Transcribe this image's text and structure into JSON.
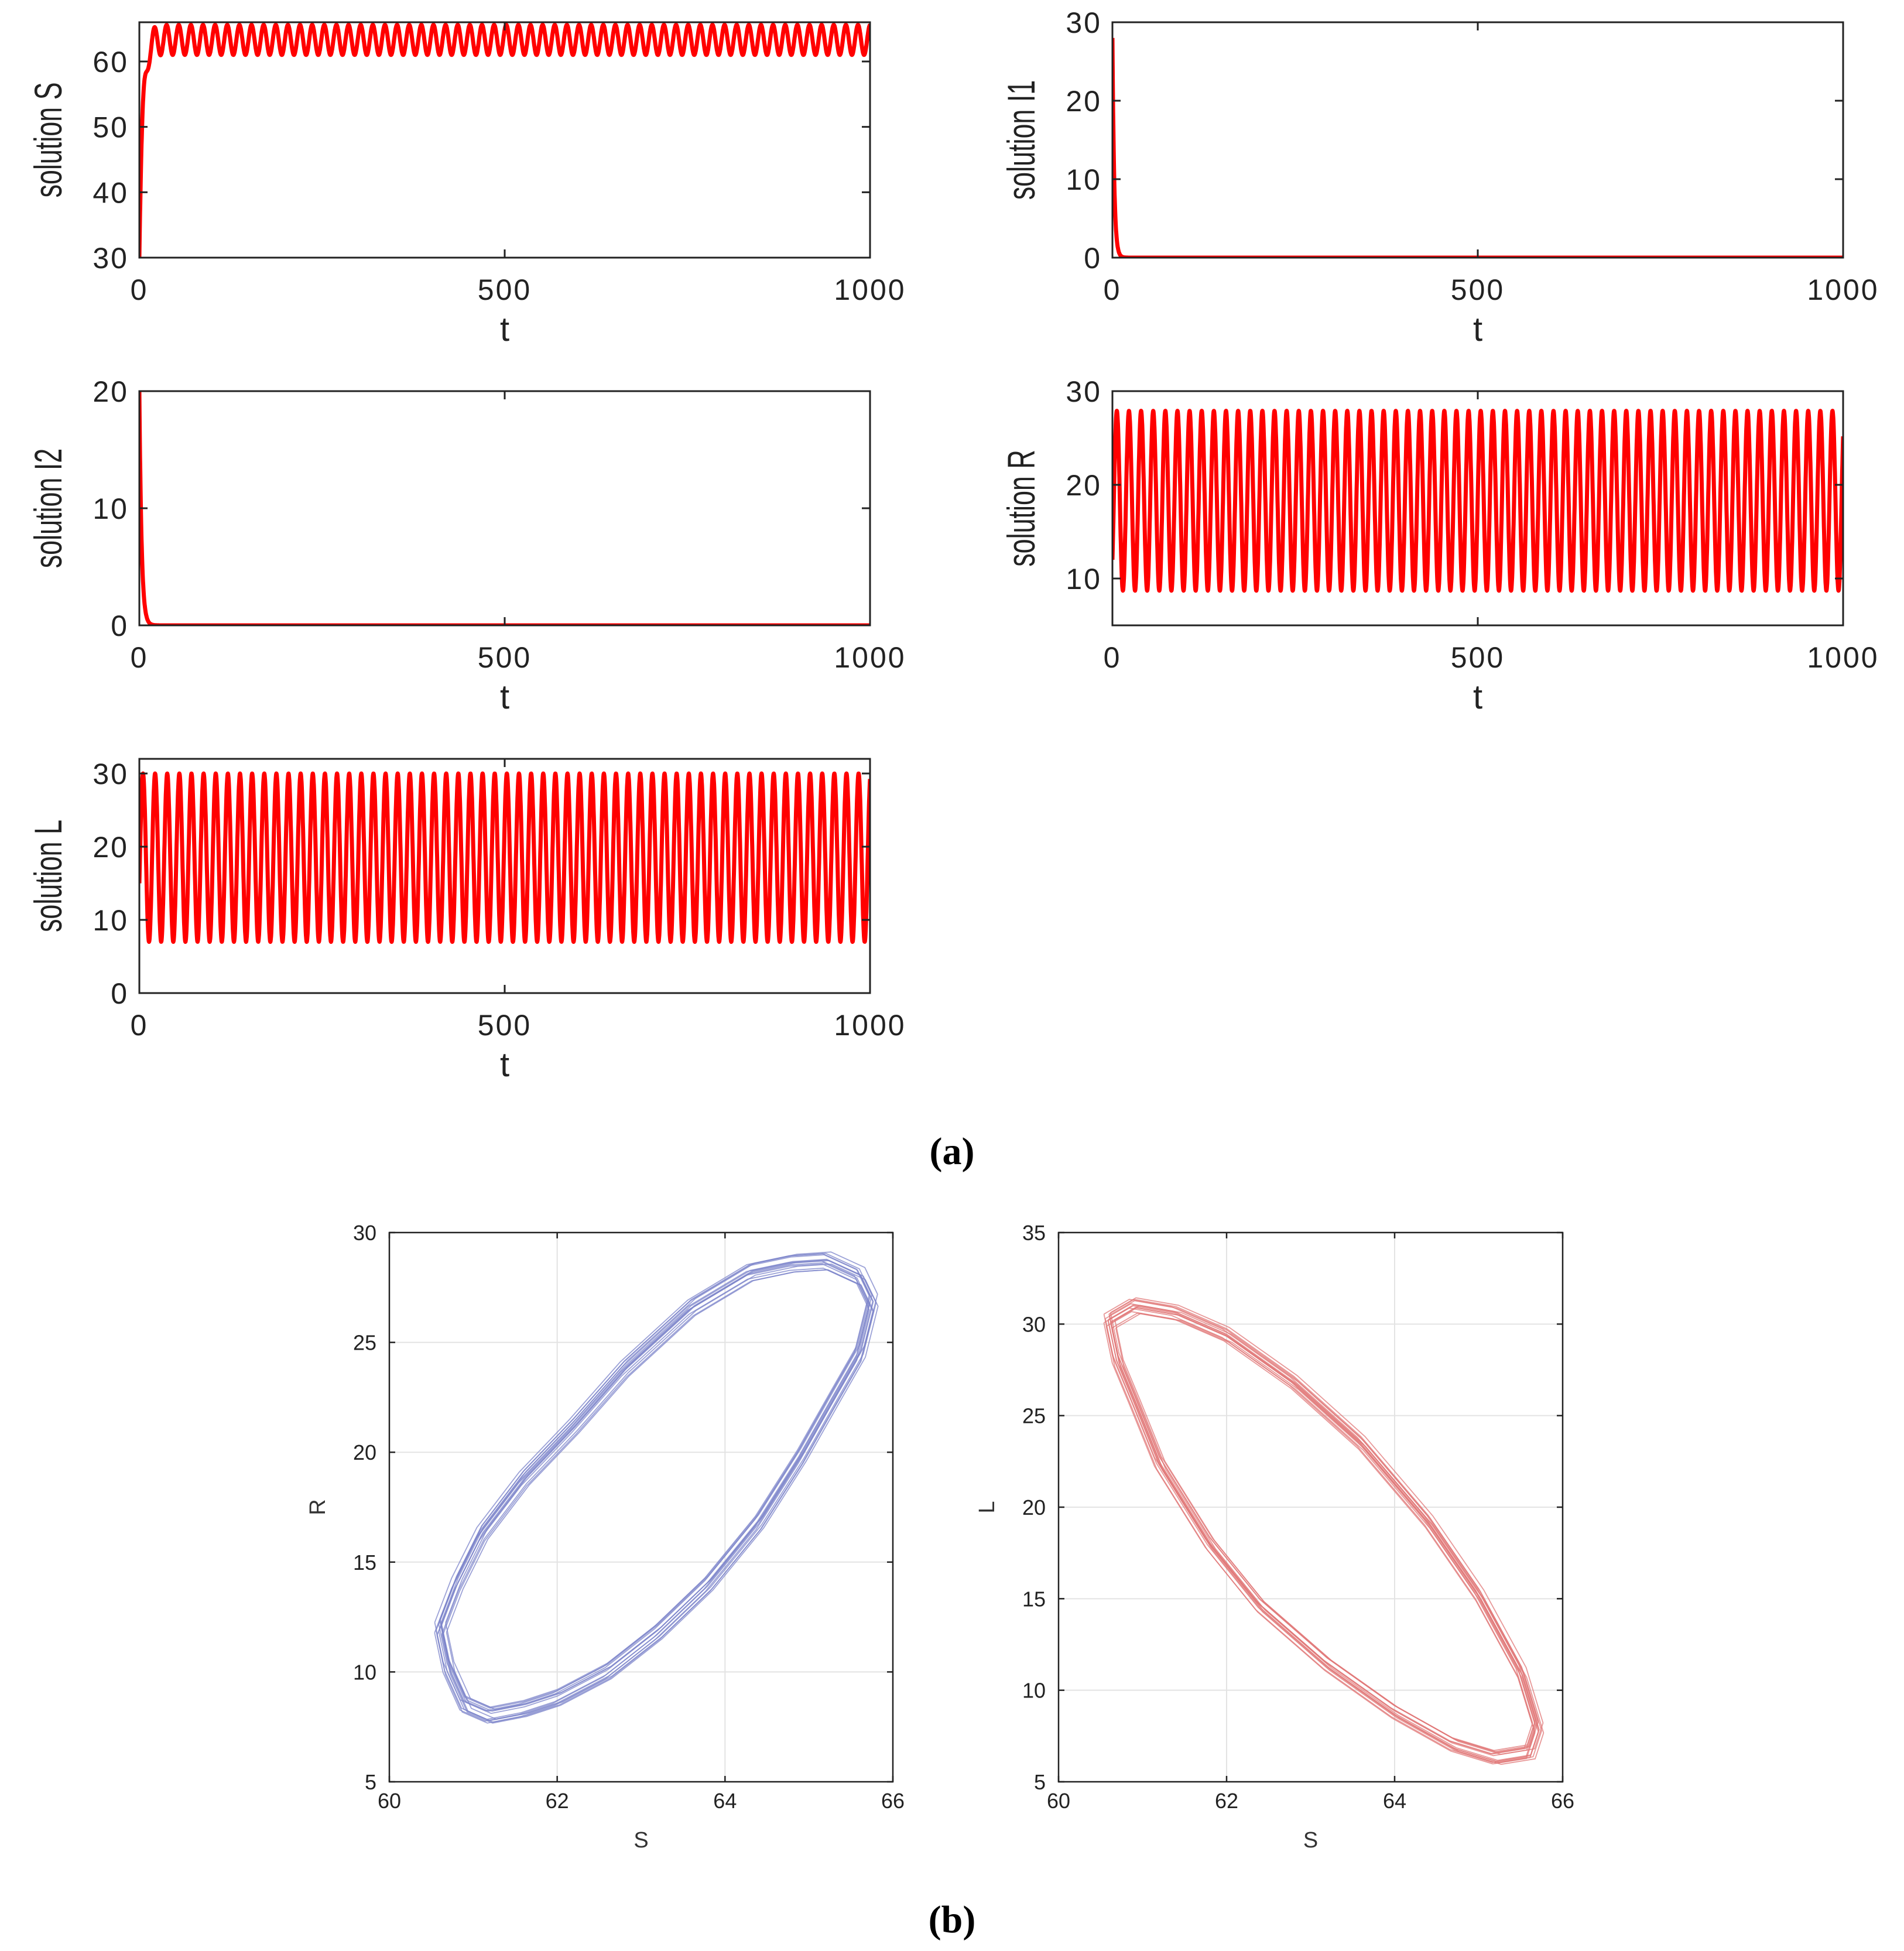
{
  "chart_data": [
    {
      "id": "S",
      "type": "line",
      "panel": "a",
      "ylabel": "solution S",
      "xlabel": "t",
      "xlim": [
        0,
        1000
      ],
      "ylim": [
        30,
        66
      ],
      "xticks": [
        "0",
        "500",
        "1000"
      ],
      "yticks": [
        "30",
        "40",
        "50",
        "60"
      ],
      "ytick_values": [
        30,
        40,
        50,
        60
      ],
      "color": "#ff0000",
      "series": [
        {
          "name": "S",
          "start": 30,
          "mean": 63.3,
          "amplitude": 2.3,
          "period": 16.6,
          "transient_time": 12,
          "description": "rises from 30 to ~63 then oscillates between ~61 and ~65.5"
        }
      ]
    },
    {
      "id": "I1",
      "type": "line",
      "panel": "a",
      "ylabel": "solution I1",
      "xlabel": "t",
      "xlim": [
        0,
        1000
      ],
      "ylim": [
        0,
        30
      ],
      "xticks": [
        "0",
        "500",
        "1000"
      ],
      "yticks": [
        "0",
        "10",
        "20",
        "30"
      ],
      "ytick_values": [
        0,
        10,
        20,
        30
      ],
      "color": "#ff0000",
      "series": [
        {
          "name": "I1",
          "start": 28,
          "decay_time": 12,
          "final": 0
        }
      ]
    },
    {
      "id": "I2",
      "type": "line",
      "panel": "a",
      "ylabel": "solution I2",
      "xlabel": "t",
      "xlim": [
        0,
        1000
      ],
      "ylim": [
        0,
        20
      ],
      "xticks": [
        "0",
        "500",
        "1000"
      ],
      "yticks": [
        "0",
        "10",
        "20"
      ],
      "ytick_values": [
        0,
        10,
        20
      ],
      "color": "#ff0000",
      "series": [
        {
          "name": "I2",
          "start": 20,
          "decay_time": 15,
          "final": 0
        }
      ]
    },
    {
      "id": "R",
      "type": "line",
      "panel": "a",
      "ylabel": "solution R",
      "xlabel": "t",
      "xlim": [
        0,
        1000
      ],
      "ylim": [
        5,
        30
      ],
      "xticks": [
        "0",
        "500",
        "1000"
      ],
      "yticks": [
        "10",
        "20",
        "30"
      ],
      "ytick_values": [
        10,
        20,
        30
      ],
      "color": "#ff0000",
      "series": [
        {
          "name": "R",
          "start": 12,
          "mean": 18.3,
          "amplitude": 9.6,
          "period": 16.6,
          "description": "oscillates between ~8.7 and ~28"
        }
      ]
    },
    {
      "id": "L",
      "type": "line",
      "panel": "a",
      "ylabel": "solution L",
      "xlabel": "t",
      "xlim": [
        0,
        1000
      ],
      "ylim": [
        0,
        32
      ],
      "xticks": [
        "0",
        "500",
        "1000"
      ],
      "yticks": [
        "0",
        "10",
        "20",
        "30"
      ],
      "ytick_values": [
        0,
        10,
        20,
        30
      ],
      "color": "#ff0000",
      "series": [
        {
          "name": "L",
          "start": 15,
          "mean": 18.5,
          "amplitude": 11.5,
          "period": 16.6,
          "description": "oscillates between ~7 and ~30"
        }
      ]
    },
    {
      "id": "phase-SR",
      "type": "line",
      "panel": "b",
      "xlabel": "S",
      "ylabel": "R",
      "xlim": [
        60,
        66
      ],
      "ylim": [
        5,
        30
      ],
      "xticks": [
        "60",
        "62",
        "64",
        "66"
      ],
      "xtick_values": [
        60,
        62,
        64,
        66
      ],
      "yticks": [
        "5",
        "10",
        "15",
        "20",
        "25",
        "30"
      ],
      "ytick_values": [
        5,
        10,
        15,
        20,
        25,
        30
      ],
      "grid": true,
      "color": "#7b83c9",
      "series": [
        {
          "name": "R vs S",
          "points": [
            [
              60.6,
              12.0
            ],
            [
              60.7,
              10.2
            ],
            [
              60.9,
              8.5
            ],
            [
              61.2,
              8.0
            ],
            [
              61.6,
              8.3
            ],
            [
              62.0,
              8.8
            ],
            [
              62.6,
              10.0
            ],
            [
              63.2,
              11.8
            ],
            [
              63.8,
              14.0
            ],
            [
              64.4,
              16.8
            ],
            [
              64.9,
              19.8
            ],
            [
              65.3,
              22.5
            ],
            [
              65.6,
              24.5
            ],
            [
              65.75,
              26.8
            ],
            [
              65.6,
              28.0
            ],
            [
              65.2,
              28.7
            ],
            [
              64.8,
              28.6
            ],
            [
              64.3,
              28.2
            ],
            [
              63.6,
              26.6
            ],
            [
              62.8,
              23.8
            ],
            [
              62.2,
              21.2
            ],
            [
              61.6,
              18.8
            ],
            [
              61.1,
              16.3
            ],
            [
              60.8,
              14.0
            ],
            [
              60.6,
              12.0
            ]
          ]
        }
      ]
    },
    {
      "id": "phase-SL",
      "type": "line",
      "panel": "b",
      "xlabel": "S",
      "ylabel": "L",
      "xlim": [
        60,
        66
      ],
      "ylim": [
        5,
        35
      ],
      "xticks": [
        "60",
        "62",
        "64",
        "66"
      ],
      "xtick_values": [
        60,
        62,
        64,
        66
      ],
      "yticks": [
        "5",
        "10",
        "15",
        "20",
        "25",
        "30",
        "35"
      ],
      "ytick_values": [
        5,
        10,
        15,
        20,
        25,
        30,
        35
      ],
      "grid": true,
      "color": "#e07575",
      "series": [
        {
          "name": "L vs S",
          "points": [
            [
              60.6,
              30.2
            ],
            [
              60.9,
              31.0
            ],
            [
              61.4,
              30.6
            ],
            [
              62.0,
              29.4
            ],
            [
              62.8,
              26.8
            ],
            [
              63.6,
              23.5
            ],
            [
              64.4,
              19.2
            ],
            [
              65.0,
              15.2
            ],
            [
              65.5,
              11.0
            ],
            [
              65.7,
              8.0
            ],
            [
              65.6,
              6.6
            ],
            [
              65.2,
              6.3
            ],
            [
              64.7,
              7.0
            ],
            [
              64.0,
              8.8
            ],
            [
              63.2,
              11.4
            ],
            [
              62.4,
              14.6
            ],
            [
              61.8,
              18.0
            ],
            [
              61.2,
              22.4
            ],
            [
              60.9,
              25.8
            ],
            [
              60.7,
              28.0
            ],
            [
              60.6,
              30.2
            ]
          ]
        }
      ]
    }
  ],
  "caption": {
    "a_label": "(a)",
    "b_label": "(b)"
  }
}
